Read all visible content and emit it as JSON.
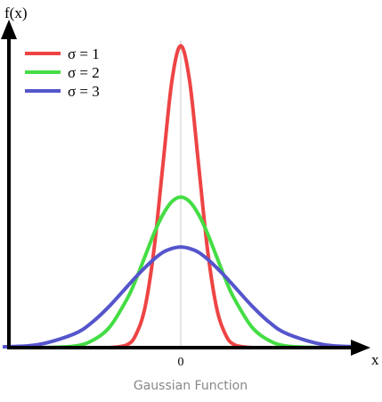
{
  "chart_data": {
    "type": "line",
    "title": "Gaussian Function",
    "ylabel": "f(x)",
    "xlabel": "x",
    "x": [
      -10,
      -8,
      -6,
      -5,
      -4,
      -3,
      -2.5,
      -2,
      -1.5,
      -1,
      -0.5,
      0,
      0.5,
      1,
      1.5,
      2,
      2.5,
      3,
      4,
      5,
      6,
      8,
      10
    ],
    "series": [
      {
        "name": "σ = 1",
        "color": "#ee4444",
        "values": [
          0,
          0,
          0,
          0,
          0,
          0.004,
          0.018,
          0.054,
          0.13,
          0.242,
          0.352,
          0.399,
          0.352,
          0.242,
          0.13,
          0.054,
          0.018,
          0.004,
          0,
          0,
          0,
          0,
          0
        ]
      },
      {
        "name": "σ = 2",
        "color": "#44dd44",
        "values": [
          0,
          0,
          0.002,
          0.009,
          0.027,
          0.065,
          0.091,
          0.121,
          0.151,
          0.176,
          0.193,
          0.199,
          0.193,
          0.176,
          0.151,
          0.121,
          0.091,
          0.065,
          0.027,
          0.009,
          0.002,
          0,
          0
        ]
      },
      {
        "name": "σ = 3",
        "color": "#5555cc",
        "values": [
          0.001,
          0.004,
          0.018,
          0.033,
          0.055,
          0.081,
          0.094,
          0.106,
          0.117,
          0.126,
          0.131,
          0.133,
          0.131,
          0.126,
          0.117,
          0.106,
          0.094,
          0.081,
          0.055,
          0.033,
          0.018,
          0.004,
          0.001
        ]
      }
    ],
    "xlim": [
      -9.65,
      10.35
    ],
    "ylim": [
      0,
      0.43
    ],
    "xticks": [
      0
    ],
    "legend": "upper left",
    "grid": true
  }
}
